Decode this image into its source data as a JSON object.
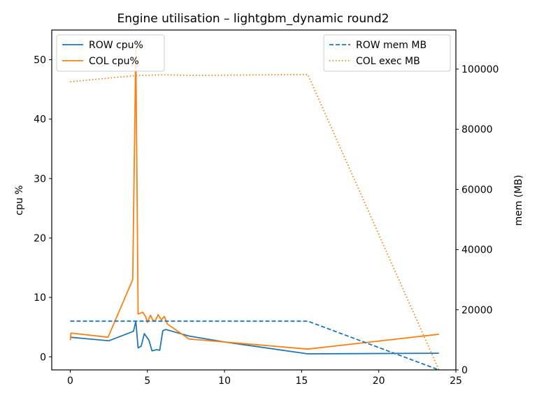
{
  "chart_data": {
    "type": "line",
    "title": "Engine utilisation – lightgbm_dynamic round2",
    "xlabel": "",
    "ylabel_left": "cpu %",
    "ylabel_right": "mem (MB)",
    "xlim": [
      -1.2,
      25
    ],
    "ylim_left": [
      -2.2,
      55
    ],
    "ylim_right": [
      0,
      113000
    ],
    "x_ticks": [
      0,
      5,
      10,
      15,
      20,
      25
    ],
    "y_left_ticks": [
      0,
      10,
      20,
      30,
      40,
      50
    ],
    "y_right_ticks": [
      0,
      20000,
      40000,
      60000,
      80000,
      100000
    ],
    "grid": false,
    "legend_left": "upper left",
    "legend_right": "upper right",
    "series": [
      {
        "name": "ROW cpu%",
        "axis": "left",
        "style": "solid",
        "color": "#1f77b4",
        "x": [
          0.0,
          2.5,
          4.1,
          4.25,
          4.4,
          4.6,
          4.8,
          5.1,
          5.3,
          5.6,
          5.8,
          6.0,
          6.2,
          7.7,
          10.0,
          15.4,
          23.9
        ],
        "y": [
          3.3,
          2.7,
          4.3,
          6.0,
          1.5,
          1.8,
          3.9,
          2.8,
          1.0,
          1.2,
          1.1,
          4.4,
          4.6,
          3.5,
          2.5,
          0.5,
          0.6
        ]
      },
      {
        "name": "COL cpu%",
        "axis": "left",
        "style": "solid",
        "color": "#ff7f0e",
        "x": [
          0.0,
          0.05,
          2.45,
          4.05,
          4.25,
          4.4,
          4.7,
          4.9,
          5.0,
          5.2,
          5.35,
          5.5,
          5.7,
          5.9,
          6.1,
          6.3,
          7.7,
          10.0,
          15.4,
          23.9
        ],
        "y": [
          2.8,
          4.0,
          3.3,
          13.0,
          52.0,
          7.2,
          7.5,
          6.7,
          5.8,
          7.0,
          6.2,
          6.0,
          7.1,
          6.2,
          6.8,
          5.5,
          3.0,
          2.5,
          1.3,
          3.8
        ]
      },
      {
        "name": "ROW mem MB",
        "axis": "right",
        "style": "dashed",
        "color": "#1f77b4",
        "x": [
          0.0,
          15.4,
          23.9
        ],
        "y": [
          16200,
          16200,
          0
        ]
      },
      {
        "name": "COL exec MB",
        "axis": "right",
        "style": "dotted",
        "color": "#ff7f0e",
        "x": [
          0.0,
          4.1,
          6.0,
          8.0,
          15.4,
          23.9
        ],
        "y": [
          95800,
          97800,
          98100,
          97900,
          98200,
          0
        ]
      }
    ]
  }
}
